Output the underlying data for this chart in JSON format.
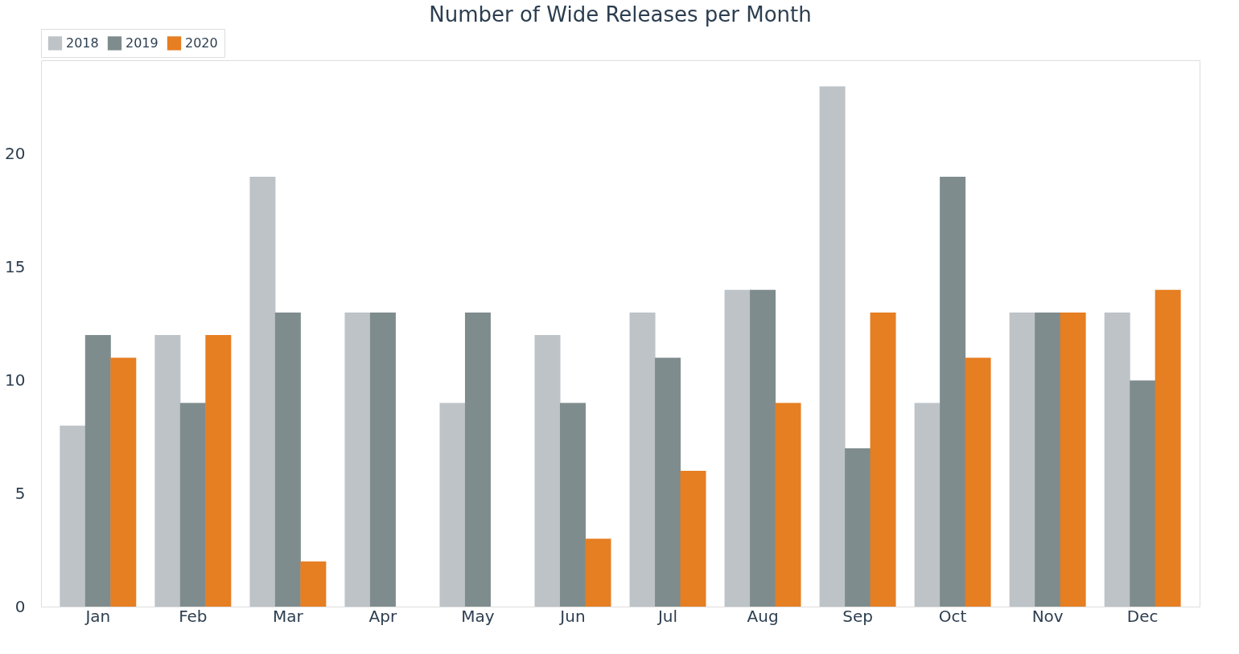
{
  "chart_data": {
    "type": "bar",
    "title": "Number of Wide Releases per Month",
    "categories": [
      "Jan",
      "Feb",
      "Mar",
      "Apr",
      "May",
      "Jun",
      "Jul",
      "Aug",
      "Sep",
      "Oct",
      "Nov",
      "Dec"
    ],
    "series": [
      {
        "name": "2018",
        "color": "#bdc3c7",
        "values": [
          8,
          12,
          19,
          13,
          9,
          12,
          13,
          14,
          23,
          9,
          13,
          13
        ]
      },
      {
        "name": "2019",
        "color": "#7f8c8d",
        "values": [
          12,
          9,
          13,
          13,
          13,
          9,
          11,
          14,
          7,
          19,
          13,
          10
        ]
      },
      {
        "name": "2020",
        "color": "#e67e22",
        "values": [
          11,
          12,
          2,
          null,
          null,
          3,
          6,
          9,
          13,
          11,
          13,
          14
        ]
      }
    ],
    "ylim": [
      0,
      24.15
    ],
    "yticks": [
      0,
      5,
      10,
      15,
      20
    ],
    "grid": false,
    "legend": "top"
  }
}
